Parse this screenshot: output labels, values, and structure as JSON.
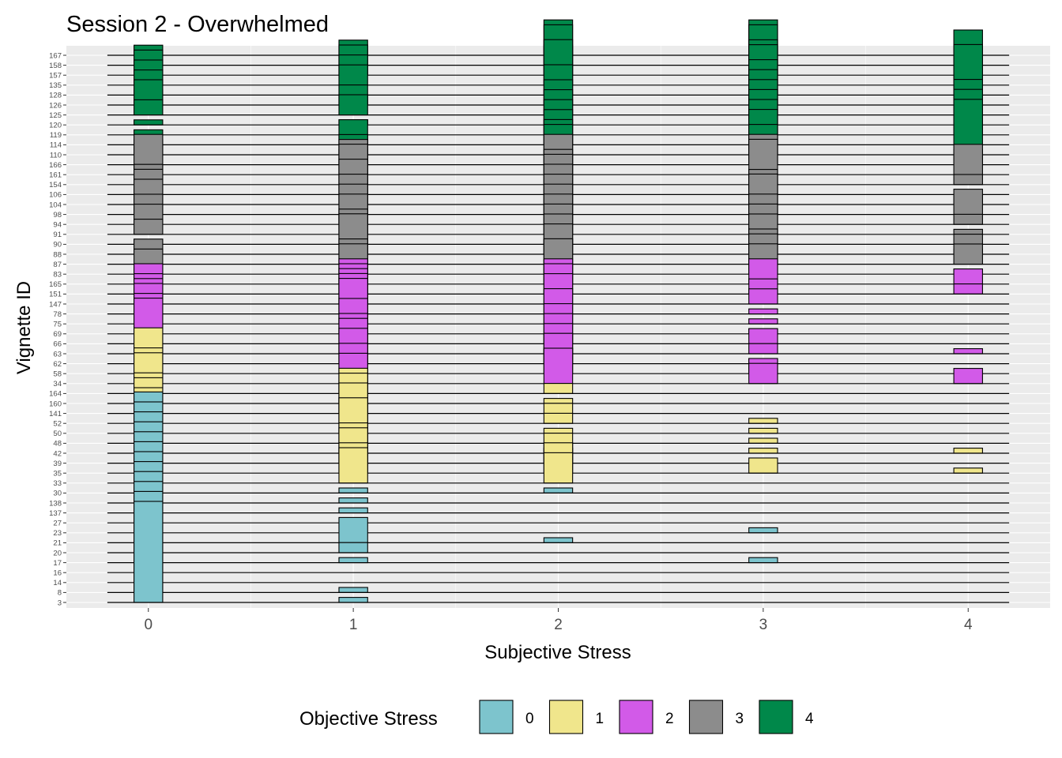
{
  "chart_data": {
    "type": "bar",
    "subtype": "ridgeline-histogram",
    "title": "Session 2 - Overwhelmed",
    "xlabel": "Subjective Stress",
    "ylabel": "Vignette ID",
    "x_ticks": [
      "0",
      "1",
      "2",
      "3",
      "4"
    ],
    "xlim": [
      -0.4,
      4.4
    ],
    "grid": true,
    "legend": {
      "title": "Objective Stress",
      "position": "bottom",
      "entries": [
        {
          "label": "0",
          "color": "#7dc4cd"
        },
        {
          "label": "1",
          "color": "#f0e68c"
        },
        {
          "label": "2",
          "color": "#d25ae8"
        },
        {
          "label": "3",
          "color": "#8c8c8c"
        },
        {
          "label": "4",
          "color": "#00884a"
        }
      ]
    },
    "value_note": "proportion of ratings per subjective stress level (0-4) for each vignette",
    "vignettes": [
      {
        "id": "3",
        "objective": 0,
        "values": [
          1.0,
          0.05,
          0.0,
          0.0,
          0.0
        ]
      },
      {
        "id": "8",
        "objective": 0,
        "values": [
          1.0,
          0.05,
          0.0,
          0.0,
          0.0
        ]
      },
      {
        "id": "14",
        "objective": 0,
        "values": [
          1.0,
          0.0,
          0.0,
          0.0,
          0.0
        ]
      },
      {
        "id": "16",
        "objective": 0,
        "values": [
          1.0,
          0.0,
          0.0,
          0.0,
          0.0
        ]
      },
      {
        "id": "17",
        "objective": 0,
        "values": [
          1.0,
          0.05,
          0.0,
          0.05,
          0.0
        ]
      },
      {
        "id": "20",
        "objective": 0,
        "values": [
          1.0,
          0.1,
          0.0,
          0.0,
          0.0
        ]
      },
      {
        "id": "21",
        "objective": 0,
        "values": [
          1.0,
          0.25,
          0.05,
          0.0,
          0.0
        ]
      },
      {
        "id": "23",
        "objective": 0,
        "values": [
          1.0,
          0.0,
          0.0,
          0.05,
          0.0
        ]
      },
      {
        "id": "27",
        "objective": 0,
        "values": [
          1.0,
          0.0,
          0.0,
          0.0,
          0.0
        ]
      },
      {
        "id": "137",
        "objective": 0,
        "values": [
          1.0,
          0.05,
          0.0,
          0.0,
          0.0
        ]
      },
      {
        "id": "138",
        "objective": 0,
        "values": [
          1.0,
          0.05,
          0.0,
          0.0,
          0.0
        ]
      },
      {
        "id": "30",
        "objective": 0,
        "values": [
          1.0,
          0.05,
          0.05,
          0.0,
          0.0
        ]
      },
      {
        "id": "33",
        "objective": 1,
        "values": [
          0.35,
          0.35,
          0.3,
          0.0,
          0.0
        ]
      },
      {
        "id": "35",
        "objective": 1,
        "values": [
          0.45,
          0.3,
          0.3,
          0.15,
          0.05
        ]
      },
      {
        "id": "39",
        "objective": 1,
        "values": [
          0.55,
          0.35,
          0.2,
          0.0,
          0.0
        ]
      },
      {
        "id": "42",
        "objective": 1,
        "values": [
          0.6,
          0.3,
          0.05,
          0.05,
          0.05
        ]
      },
      {
        "id": "48",
        "objective": 1,
        "values": [
          0.55,
          0.45,
          0.1,
          0.05,
          0.0
        ]
      },
      {
        "id": "50",
        "objective": 1,
        "values": [
          0.55,
          0.35,
          0.05,
          0.05,
          0.0
        ]
      },
      {
        "id": "52",
        "objective": 1,
        "values": [
          0.5,
          0.4,
          0.1,
          0.05,
          0.0
        ]
      },
      {
        "id": "141",
        "objective": 1,
        "values": [
          0.6,
          0.3,
          0.1,
          0.0,
          0.0
        ]
      },
      {
        "id": "160",
        "objective": 1,
        "values": [
          0.55,
          0.3,
          0.05,
          0.0,
          0.0
        ]
      },
      {
        "id": "164",
        "objective": 1,
        "values": [
          0.65,
          0.25,
          0.1,
          0.0,
          0.0
        ]
      },
      {
        "id": "34",
        "objective": 2,
        "values": [
          0.15,
          0.3,
          0.35,
          0.2,
          0.15
        ]
      },
      {
        "id": "58",
        "objective": 2,
        "values": [
          0.25,
          0.3,
          0.25,
          0.15,
          0.0
        ]
      },
      {
        "id": "62",
        "objective": 2,
        "values": [
          0.3,
          0.35,
          0.3,
          0.05,
          0.0
        ]
      },
      {
        "id": "63",
        "objective": 2,
        "values": [
          0.55,
          0.35,
          0.2,
          0.1,
          0.05
        ]
      },
      {
        "id": "66",
        "objective": 2,
        "values": [
          0.3,
          0.3,
          0.2,
          0.15,
          0.0
        ]
      },
      {
        "id": "69",
        "objective": 2,
        "values": [
          0.4,
          0.35,
          0.2,
          0.05,
          0.0
        ]
      },
      {
        "id": "75",
        "objective": 2,
        "values": [
          0.4,
          0.45,
          0.2,
          0.05,
          0.0
        ]
      },
      {
        "id": "78",
        "objective": 2,
        "values": [
          0.35,
          0.4,
          0.25,
          0.05,
          0.0
        ]
      },
      {
        "id": "147",
        "objective": 2,
        "values": [
          0.3,
          0.35,
          0.3,
          0.15,
          0.0
        ]
      },
      {
        "id": "151",
        "objective": 2,
        "values": [
          0.3,
          0.3,
          0.3,
          0.15,
          0.1
        ]
      },
      {
        "id": "165",
        "objective": 2,
        "values": [
          0.2,
          0.25,
          0.25,
          0.25,
          0.15
        ]
      },
      {
        "id": "83",
        "objective": 3,
        "values": [
          0.05,
          0.3,
          0.35,
          0.3,
          0.05
        ]
      },
      {
        "id": "87",
        "objective": 3,
        "values": [
          0.15,
          0.25,
          0.25,
          0.3,
          0.2
        ]
      },
      {
        "id": "88",
        "objective": 3,
        "values": [
          0.15,
          0.4,
          0.3,
          0.25,
          0.05
        ]
      },
      {
        "id": "90",
        "objective": 3,
        "values": [
          0.05,
          0.3,
          0.3,
          0.3,
          0.1
        ]
      },
      {
        "id": "91",
        "objective": 3,
        "values": [
          0.15,
          0.25,
          0.3,
          0.3,
          0.05
        ]
      },
      {
        "id": "94",
        "objective": 3,
        "values": [
          0.2,
          0.3,
          0.3,
          0.3,
          0.1
        ]
      },
      {
        "id": "98",
        "objective": 3,
        "values": [
          0.2,
          0.3,
          0.3,
          0.4,
          0.25
        ]
      },
      {
        "id": "104",
        "objective": 3,
        "values": [
          0.25,
          0.3,
          0.3,
          0.2,
          0.1
        ]
      },
      {
        "id": "106",
        "objective": 3,
        "values": [
          0.25,
          0.35,
          0.3,
          0.2,
          0.0
        ]
      },
      {
        "id": "154",
        "objective": 3,
        "values": [
          0.2,
          0.4,
          0.3,
          0.15,
          0.1
        ]
      },
      {
        "id": "161",
        "objective": 3,
        "values": [
          0.1,
          0.25,
          0.25,
          0.35,
          0.3
        ]
      },
      {
        "id": "166",
        "objective": 3,
        "values": [
          0.3,
          0.25,
          0.3,
          0.3,
          0.15
        ]
      },
      {
        "id": "110",
        "objective": 4,
        "values": [
          0.1,
          0.2,
          0.3,
          0.3,
          0.05
        ]
      },
      {
        "id": "114",
        "objective": 4,
        "values": [
          0.05,
          0.1,
          0.25,
          0.35,
          0.45
        ]
      },
      {
        "id": "119",
        "objective": 4,
        "values": [
          0.05,
          0.15,
          0.25,
          0.35,
          0.45
        ]
      },
      {
        "id": "120",
        "objective": 4,
        "values": [
          0.05,
          0.05,
          0.25,
          0.35,
          0.45
        ]
      },
      {
        "id": "125",
        "objective": 4,
        "values": [
          0.15,
          0.2,
          0.25,
          0.35,
          0.35
        ]
      },
      {
        "id": "126",
        "objective": 4,
        "values": [
          0.25,
          0.1,
          0.25,
          0.35,
          0.25
        ]
      },
      {
        "id": "128",
        "objective": 4,
        "values": [
          0.05,
          0.1,
          0.3,
          0.35,
          0.5
        ]
      },
      {
        "id": "135",
        "objective": 4,
        "values": [
          0.15,
          0.2,
          0.45,
          0.4,
          0.2
        ]
      },
      {
        "id": "157",
        "objective": 4,
        "values": [
          0.15,
          0.2,
          0.3,
          0.35,
          0.2
        ]
      },
      {
        "id": "158",
        "objective": 4,
        "values": [
          0.15,
          0.2,
          0.4,
          0.4,
          0.15
        ]
      },
      {
        "id": "167",
        "objective": 4,
        "values": [
          0.1,
          0.15,
          0.35,
          0.35,
          0.25
        ]
      }
    ]
  }
}
